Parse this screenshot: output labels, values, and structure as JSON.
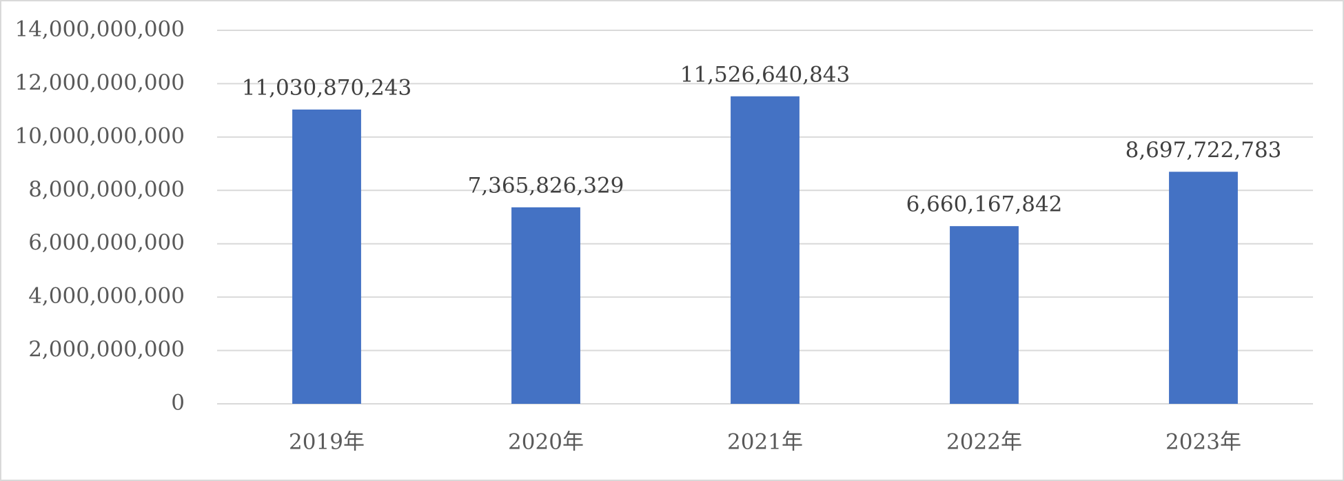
{
  "chart_data": {
    "type": "bar",
    "categories": [
      "2019年",
      "2020年",
      "2021年",
      "2022年",
      "2023年"
    ],
    "values": [
      11030870243,
      7365826329,
      11526640843,
      6660167842,
      8697722783
    ],
    "value_labels": [
      "11,030,870,243",
      "7,365,826,329",
      "11,526,640,843",
      "6,660,167,842",
      "8,697,722,783"
    ],
    "color": "#4472c4",
    "ylim": [
      0,
      14000000000
    ],
    "yticks": [
      0,
      {
        "value": 2000000000,
        "label": "2,000,000,000"
      },
      {
        "value": 4000000000,
        "label": "4,000,000,000"
      },
      {
        "value": 6000000000,
        "label": "6,000,000,000"
      },
      {
        "value": 8000000000,
        "label": "8,000,000,000"
      },
      {
        "value": 10000000000,
        "label": "10,000,000,000"
      },
      {
        "value": 12000000000,
        "label": "12,000,000,000"
      },
      {
        "value": 14000000000,
        "label": "14,000,000,000"
      }
    ],
    "grid": true
  }
}
